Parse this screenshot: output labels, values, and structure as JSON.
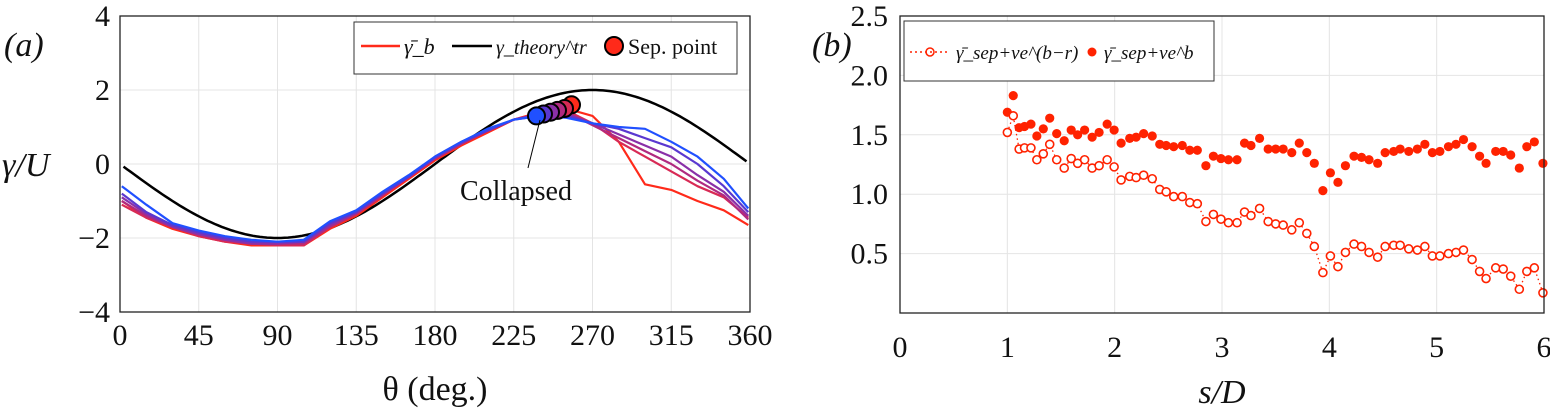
{
  "chart_data": [
    {
      "type": "line",
      "panel_label": "(a)",
      "xlabel": "θ (deg.)",
      "ylabel": "γ/U",
      "xlim": [
        0,
        360
      ],
      "ylim": [
        -4,
        4
      ],
      "xticks": [
        "0",
        "45",
        "90",
        "135",
        "180",
        "225",
        "270",
        "315",
        "360"
      ],
      "yticks": [
        "4",
        "2",
        "0",
        "−2",
        "−4"
      ],
      "xtick_values": [
        0,
        45,
        90,
        135,
        180,
        225,
        270,
        315,
        360
      ],
      "ytick_values": [
        4,
        2,
        0,
        -2,
        -4
      ],
      "grid": true,
      "legend": {
        "placement": "top-right",
        "entries": [
          "γ̄_b",
          "γ_theory^tr",
          "Sep. point"
        ],
        "measured_main": "γ̄",
        "measured_sub": "b",
        "theory_main": "γ",
        "theory_sup": "tr",
        "theory_sub": "theory",
        "sep_label": "Sep. point"
      },
      "annotation": "Collapsed",
      "theory": {
        "name": "γ_theory^tr",
        "formula": "-2 sin(θ)",
        "color": "#000000"
      },
      "x": [
        0,
        15,
        30,
        45,
        60,
        75,
        90,
        105,
        120,
        135,
        150,
        165,
        180,
        195,
        210,
        225,
        240,
        255,
        270,
        285,
        300,
        315,
        330,
        345,
        360
      ],
      "series": [
        {
          "name": "γ̄_b (1)",
          "color": "#ff2a1a",
          "values": [
            -1.0,
            -1.45,
            -1.75,
            -1.95,
            -2.1,
            -2.2,
            -2.2,
            -2.2,
            -1.75,
            -1.4,
            -0.9,
            -0.4,
            0.1,
            0.5,
            0.85,
            1.2,
            1.4,
            1.5,
            1.3,
            0.6,
            -0.55,
            -0.7,
            -1.0,
            -1.25,
            -1.65
          ]
        },
        {
          "name": "γ̄_b (2)",
          "color": "#d82a55",
          "values": [
            -1.1,
            -1.45,
            -1.7,
            -1.95,
            -2.1,
            -2.15,
            -2.2,
            -2.2,
            -1.7,
            -1.35,
            -0.85,
            -0.35,
            0.15,
            0.55,
            0.9,
            1.2,
            1.35,
            1.45,
            1.1,
            0.6,
            0.2,
            -0.2,
            -0.6,
            -0.9,
            -1.45
          ]
        },
        {
          "name": "γ̄_b (3)",
          "color": "#b02a80",
          "values": [
            -1.0,
            -1.4,
            -1.7,
            -1.9,
            -2.05,
            -2.15,
            -2.15,
            -2.15,
            -1.7,
            -1.35,
            -0.85,
            -0.35,
            0.15,
            0.55,
            0.9,
            1.2,
            1.35,
            1.4,
            1.05,
            0.7,
            0.35,
            0.0,
            -0.45,
            -0.85,
            -1.5
          ]
        },
        {
          "name": "γ̄_b (4)",
          "color": "#8a30a8",
          "values": [
            -0.9,
            -1.35,
            -1.7,
            -1.9,
            -2.05,
            -2.15,
            -2.15,
            -2.1,
            -1.65,
            -1.3,
            -0.8,
            -0.35,
            0.15,
            0.55,
            0.9,
            1.2,
            1.35,
            1.35,
            1.1,
            0.8,
            0.5,
            0.2,
            -0.3,
            -0.75,
            -1.4
          ]
        },
        {
          "name": "γ̄_b (5)",
          "color": "#5a38d0",
          "values": [
            -0.8,
            -1.3,
            -1.65,
            -1.85,
            -2.0,
            -2.1,
            -2.1,
            -2.1,
            -1.6,
            -1.3,
            -0.8,
            -0.35,
            0.2,
            0.6,
            0.9,
            1.2,
            1.3,
            1.3,
            1.1,
            0.95,
            0.7,
            0.45,
            0.0,
            -0.6,
            -1.3
          ]
        },
        {
          "name": "γ̄_b (6)",
          "color": "#2050ff",
          "values": [
            -0.6,
            -1.1,
            -1.6,
            -1.8,
            -1.95,
            -2.05,
            -2.1,
            -2.05,
            -1.55,
            -1.25,
            -0.75,
            -0.3,
            0.2,
            0.6,
            0.95,
            1.2,
            1.3,
            1.25,
            1.1,
            1.0,
            0.95,
            0.6,
            0.2,
            -0.4,
            -1.2
          ]
        }
      ],
      "sep_points": {
        "theta": [
          258,
          254,
          250,
          246,
          242,
          238
        ],
        "values": [
          1.6,
          1.5,
          1.45,
          1.4,
          1.35,
          1.3
        ]
      }
    },
    {
      "type": "scatter",
      "panel_label": "(b)",
      "xlabel": "s/D",
      "ylabel": "",
      "xlim": [
        0,
        6
      ],
      "ylim": [
        0,
        2.5
      ],
      "xticks": [
        "0",
        "1",
        "2",
        "3",
        "4",
        "5",
        "6"
      ],
      "xtick_values": [
        0,
        1,
        2,
        3,
        4,
        5,
        6
      ],
      "yticks": [
        "2.5",
        "2.0",
        "1.5",
        "1.0",
        "0.5"
      ],
      "ytick_values": [
        2.5,
        2.0,
        1.5,
        1.0,
        0.5
      ],
      "grid": true,
      "legend": {
        "placement": "top-left",
        "entries": [
          "γ̄_sep+ve^(b−r)",
          "γ̄_sep+ve^b"
        ],
        "main": "γ̄",
        "sub": "sep",
        "subsub": "+ve",
        "sup1": "b−r",
        "sup2": "b"
      },
      "color": "#ff2200",
      "x": [
        1.0,
        1.055,
        1.11,
        1.16,
        1.22,
        1.275,
        1.335,
        1.395,
        1.46,
        1.53,
        1.595,
        1.655,
        1.72,
        1.79,
        1.855,
        1.93,
        1.995,
        2.06,
        2.14,
        2.2,
        2.27,
        2.35,
        2.42,
        2.48,
        2.55,
        2.63,
        2.7,
        2.77,
        2.85,
        2.92,
        2.99,
        3.06,
        3.14,
        3.21,
        3.27,
        3.35,
        3.43,
        3.5,
        3.57,
        3.65,
        3.72,
        3.79,
        3.86,
        3.94,
        4.01,
        4.08,
        4.15,
        4.23,
        4.3,
        4.37,
        4.45,
        4.52,
        4.6,
        4.66,
        4.74,
        4.82,
        4.89,
        4.96,
        5.03,
        5.11,
        5.18,
        5.25,
        5.33,
        5.4,
        5.46,
        5.55,
        5.62,
        5.69,
        5.77,
        5.84,
        5.91,
        5.99
      ],
      "series": [
        {
          "name": "γ̄_sep+ve^(b−r)",
          "marker": "open-circle-dotted-line",
          "values": [
            1.52,
            1.66,
            1.38,
            1.39,
            1.39,
            1.29,
            1.34,
            1.42,
            1.29,
            1.22,
            1.3,
            1.26,
            1.29,
            1.22,
            1.24,
            1.29,
            1.23,
            1.12,
            1.15,
            1.14,
            1.16,
            1.13,
            1.04,
            1.02,
            0.98,
            0.98,
            0.93,
            0.92,
            0.77,
            0.83,
            0.79,
            0.76,
            0.76,
            0.85,
            0.82,
            0.88,
            0.77,
            0.75,
            0.74,
            0.7,
            0.76,
            0.67,
            0.56,
            0.34,
            0.48,
            0.39,
            0.51,
            0.58,
            0.56,
            0.51,
            0.47,
            0.56,
            0.57,
            0.57,
            0.54,
            0.53,
            0.56,
            0.48,
            0.48,
            0.5,
            0.51,
            0.53,
            0.45,
            0.35,
            0.29,
            0.38,
            0.37,
            0.31,
            0.2,
            0.35,
            0.38,
            0.17
          ]
        },
        {
          "name": "γ̄_sep+ve^b",
          "marker": "filled-circle",
          "values": [
            1.69,
            1.83,
            1.56,
            1.57,
            1.59,
            1.49,
            1.55,
            1.64,
            1.51,
            1.45,
            1.54,
            1.5,
            1.54,
            1.48,
            1.52,
            1.59,
            1.54,
            1.43,
            1.47,
            1.48,
            1.51,
            1.49,
            1.42,
            1.41,
            1.4,
            1.41,
            1.37,
            1.37,
            1.24,
            1.32,
            1.3,
            1.29,
            1.29,
            1.43,
            1.41,
            1.47,
            1.38,
            1.38,
            1.38,
            1.35,
            1.43,
            1.35,
            1.26,
            1.03,
            1.18,
            1.1,
            1.24,
            1.32,
            1.31,
            1.29,
            1.26,
            1.35,
            1.36,
            1.38,
            1.36,
            1.38,
            1.42,
            1.35,
            1.36,
            1.4,
            1.42,
            1.46,
            1.4,
            1.32,
            1.26,
            1.36,
            1.36,
            1.33,
            1.22,
            1.4,
            1.44,
            1.26
          ]
        }
      ]
    }
  ]
}
